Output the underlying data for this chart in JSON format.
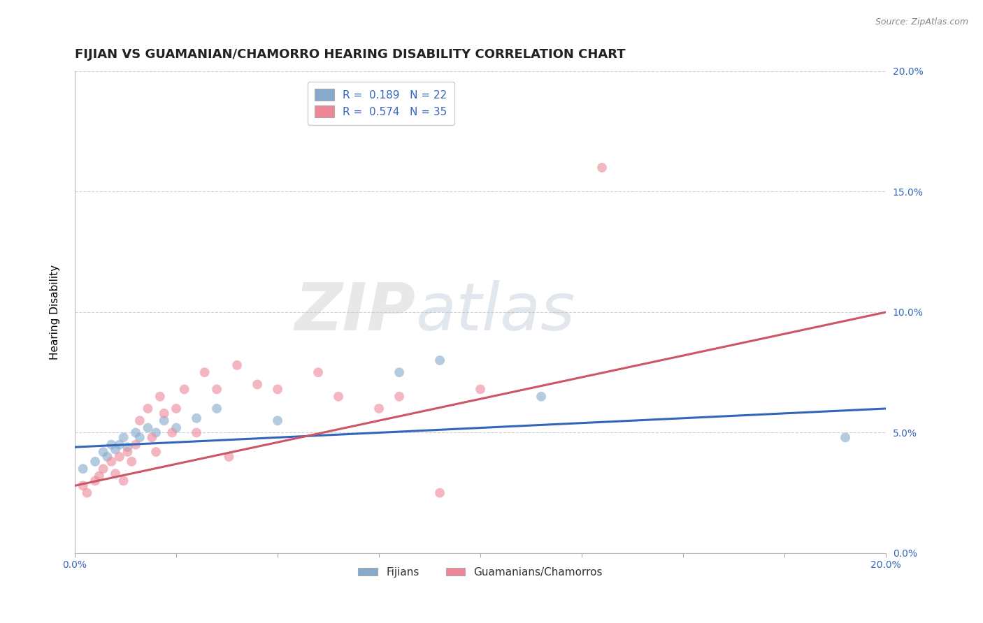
{
  "title": "FIJIAN VS GUAMANIAN/CHAMORRO HEARING DISABILITY CORRELATION CHART",
  "source": "Source: ZipAtlas.com",
  "ylabel": "Hearing Disability",
  "ytick_values": [
    0.0,
    0.05,
    0.1,
    0.15,
    0.2
  ],
  "xlim": [
    0.0,
    0.2
  ],
  "ylim": [
    0.0,
    0.2
  ],
  "legend_entry1": "R =  0.189   N = 22",
  "legend_entry2": "R =  0.574   N = 35",
  "legend_label1": "Fijians",
  "legend_label2": "Guamanians/Chamorros",
  "color_blue": "#85AACC",
  "color_pink": "#EE8899",
  "line_color_blue": "#3366BB",
  "line_color_pink": "#CC5566",
  "background_color": "#FFFFFF",
  "fijian_x": [
    0.002,
    0.005,
    0.007,
    0.008,
    0.009,
    0.01,
    0.011,
    0.012,
    0.013,
    0.015,
    0.016,
    0.018,
    0.02,
    0.022,
    0.025,
    0.03,
    0.035,
    0.05,
    0.08,
    0.09,
    0.115,
    0.19
  ],
  "fijian_y": [
    0.035,
    0.038,
    0.042,
    0.04,
    0.045,
    0.043,
    0.045,
    0.048,
    0.044,
    0.05,
    0.048,
    0.052,
    0.05,
    0.055,
    0.052,
    0.056,
    0.06,
    0.055,
    0.075,
    0.08,
    0.065,
    0.048
  ],
  "guam_x": [
    0.002,
    0.003,
    0.005,
    0.006,
    0.007,
    0.009,
    0.01,
    0.011,
    0.012,
    0.013,
    0.014,
    0.015,
    0.016,
    0.018,
    0.019,
    0.02,
    0.021,
    0.022,
    0.024,
    0.025,
    0.027,
    0.03,
    0.032,
    0.035,
    0.038,
    0.04,
    0.045,
    0.05,
    0.06,
    0.065,
    0.075,
    0.08,
    0.09,
    0.13,
    0.1
  ],
  "guam_y": [
    0.028,
    0.025,
    0.03,
    0.032,
    0.035,
    0.038,
    0.033,
    0.04,
    0.03,
    0.042,
    0.038,
    0.045,
    0.055,
    0.06,
    0.048,
    0.042,
    0.065,
    0.058,
    0.05,
    0.06,
    0.068,
    0.05,
    0.075,
    0.068,
    0.04,
    0.078,
    0.07,
    0.068,
    0.075,
    0.065,
    0.06,
    0.065,
    0.025,
    0.16,
    0.068
  ],
  "fijian_line_x": [
    0.0,
    0.2
  ],
  "fijian_line_y": [
    0.044,
    0.06
  ],
  "guam_line_x": [
    0.0,
    0.2
  ],
  "guam_line_y": [
    0.028,
    0.1
  ],
  "grid_color": "#CCCCCC",
  "title_fontsize": 13,
  "axis_label_fontsize": 11,
  "tick_fontsize": 10,
  "marker_size": 100,
  "marker_alpha": 0.6,
  "line_width": 2.2
}
